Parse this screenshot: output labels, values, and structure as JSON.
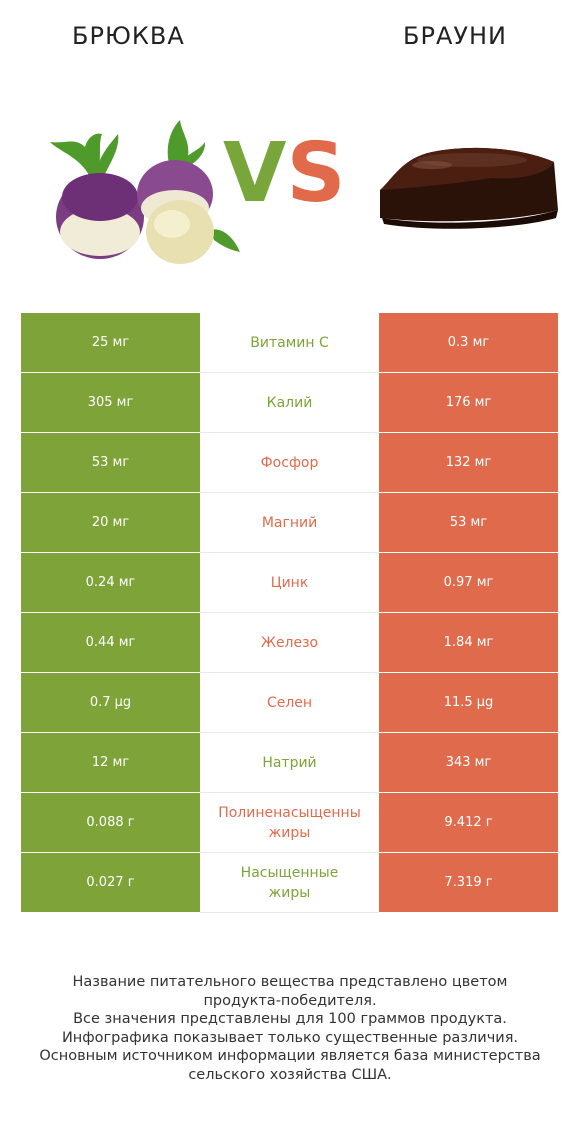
{
  "header": {
    "left_title": "БРЮКВА",
    "right_title": "БРАУНИ",
    "vs_v": "V",
    "vs_s": "S"
  },
  "colors": {
    "left_accent": "#7ea338",
    "right_accent": "#e06b4c"
  },
  "rows": [
    {
      "left": "25 мг",
      "name": "Витамин C",
      "right": "0.3 мг",
      "winner": "left"
    },
    {
      "left": "305 мг",
      "name": "Калий",
      "right": "176 мг",
      "winner": "left"
    },
    {
      "left": "53 мг",
      "name": "Фосфор",
      "right": "132 мг",
      "winner": "right"
    },
    {
      "left": "20 мг",
      "name": "Магний",
      "right": "53 мг",
      "winner": "right"
    },
    {
      "left": "0.24 мг",
      "name": "Цинк",
      "right": "0.97 мг",
      "winner": "right"
    },
    {
      "left": "0.44 мг",
      "name": "Железо",
      "right": "1.84 мг",
      "winner": "right"
    },
    {
      "left": "0.7 µg",
      "name": "Селен",
      "right": "11.5 µg",
      "winner": "right"
    },
    {
      "left": "12 мг",
      "name": "Натрий",
      "right": "343 мг",
      "winner": "left"
    },
    {
      "left": "0.088 г",
      "name": "Полиненасыщенные жиры",
      "name_lines": [
        "Полиненасыщенны",
        "жиры"
      ],
      "right": "9.412 г",
      "winner": "right"
    },
    {
      "left": "0.027 г",
      "name": "Насыщенные жиры",
      "name_lines": [
        "Насыщенные",
        "жиры"
      ],
      "right": "7.319 г",
      "winner": "left"
    }
  ],
  "footnote": [
    "Название питательного вещества представлено цветом",
    "продукта-победителя.",
    "Все значения представлены для 100 граммов продукта.",
    "Инфографика показывает только существенные различия.",
    "Основным источником информации является база министерства",
    "сельского хозяйства США."
  ]
}
